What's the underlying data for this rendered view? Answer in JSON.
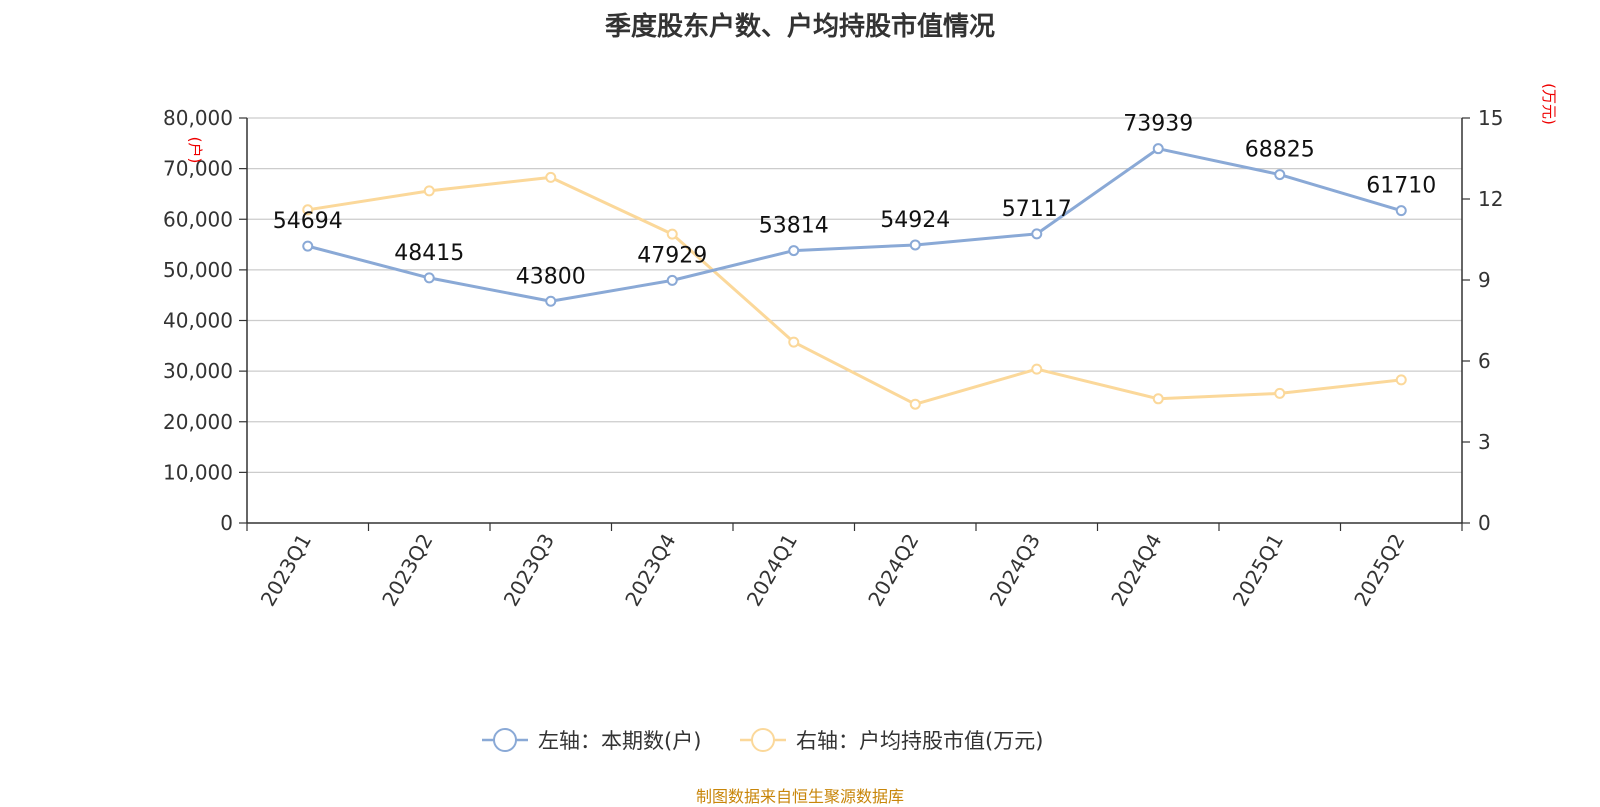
{
  "chart_data": {
    "type": "line",
    "title": "季度股东户数、户均持股市值情况",
    "categories": [
      "2023Q1",
      "2023Q2",
      "2023Q3",
      "2023Q4",
      "2024Q1",
      "2024Q2",
      "2024Q3",
      "2024Q4",
      "2025Q1",
      "2025Q2"
    ],
    "left_axis": {
      "unit": "(户)",
      "min": 0,
      "max": 80000,
      "ticks": [
        "0",
        "10,000",
        "20,000",
        "30,000",
        "40,000",
        "50,000",
        "60,000",
        "70,000",
        "80,000"
      ],
      "tick_values": [
        0,
        10000,
        20000,
        30000,
        40000,
        50000,
        60000,
        70000,
        80000
      ]
    },
    "right_axis": {
      "unit": "(万元)",
      "min": 0,
      "max": 15,
      "ticks": [
        "0",
        "3",
        "6",
        "9",
        "12",
        "15"
      ],
      "tick_values": [
        0,
        3,
        6,
        9,
        12,
        15
      ]
    },
    "series": [
      {
        "name": "左轴：本期数(户)",
        "axis": "left",
        "color": "#8aa9d6",
        "values": [
          54694,
          48415,
          43800,
          47929,
          53814,
          54924,
          57117,
          73939,
          68825,
          61710
        ],
        "labels": [
          "54694",
          "48415",
          "43800",
          "47929",
          "53814",
          "54924",
          "57117",
          "73939",
          "68825",
          "61710"
        ]
      },
      {
        "name": "右轴：户均持股市值(万元)",
        "axis": "right",
        "color": "#fbd89a",
        "values": [
          11.6,
          12.3,
          12.8,
          10.7,
          6.7,
          4.4,
          5.7,
          4.6,
          4.8,
          5.3
        ]
      }
    ],
    "grid": true,
    "legend_position": "bottom"
  },
  "source_text": "制图数据来自恒生聚源数据库"
}
